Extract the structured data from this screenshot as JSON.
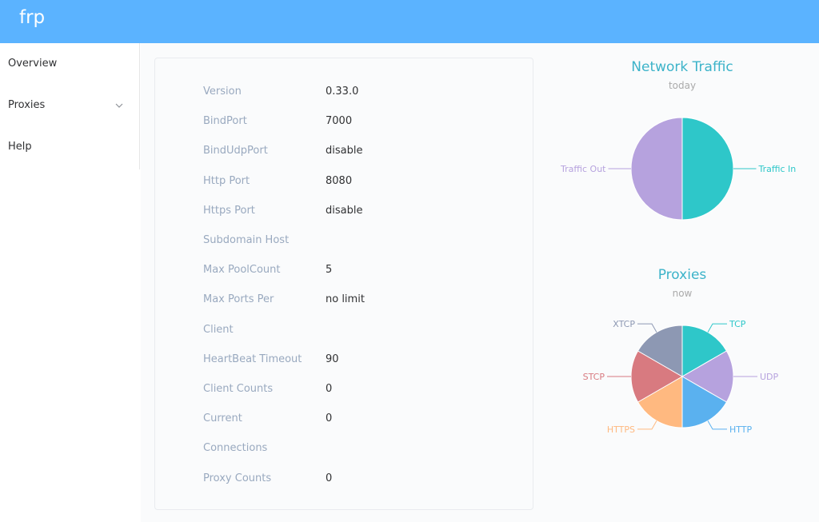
{
  "header": {
    "brand": "frp"
  },
  "sidebar": {
    "items": [
      {
        "label": "Overview"
      },
      {
        "label": "Proxies"
      },
      {
        "label": "Help"
      }
    ]
  },
  "server_info": {
    "rows": [
      {
        "label": "Version",
        "value": "0.33.0"
      },
      {
        "label": "BindPort",
        "value": "7000"
      },
      {
        "label": "BindUdpPort",
        "value": "disable"
      },
      {
        "label": "Http Port",
        "value": "8080"
      },
      {
        "label": "Https Port",
        "value": "disable"
      },
      {
        "label": "Subdomain Host",
        "value": ""
      },
      {
        "label": "Max PoolCount",
        "value": "5"
      },
      {
        "label": "Max Ports Per",
        "value": "no limit"
      },
      {
        "label": "Client",
        "value": ""
      },
      {
        "label": "HeartBeat Timeout",
        "value": "90"
      },
      {
        "label": "Client Counts",
        "value": "0"
      },
      {
        "label": "Current",
        "value": "0"
      },
      {
        "label": "Connections",
        "value": ""
      },
      {
        "label": "Proxy Counts",
        "value": "0"
      }
    ]
  },
  "chart_data": [
    {
      "type": "pie",
      "title": "Network Traffic",
      "subtitle": "today",
      "slices": [
        {
          "name": "Traffic In",
          "value": 1,
          "color": "#2ec7c9"
        },
        {
          "name": "Traffic Out",
          "value": 1,
          "color": "#b6a2de"
        }
      ]
    },
    {
      "type": "pie",
      "title": "Proxies",
      "subtitle": "now",
      "slices": [
        {
          "name": "TCP",
          "value": 1,
          "color": "#2ec7c9"
        },
        {
          "name": "UDP",
          "value": 1,
          "color": "#b6a2de"
        },
        {
          "name": "HTTP",
          "value": 1,
          "color": "#5ab1ef"
        },
        {
          "name": "HTTPS",
          "value": 1,
          "color": "#ffb980"
        },
        {
          "name": "STCP",
          "value": 1,
          "color": "#d87a80"
        },
        {
          "name": "XTCP",
          "value": 1,
          "color": "#8d98b3"
        }
      ]
    }
  ]
}
